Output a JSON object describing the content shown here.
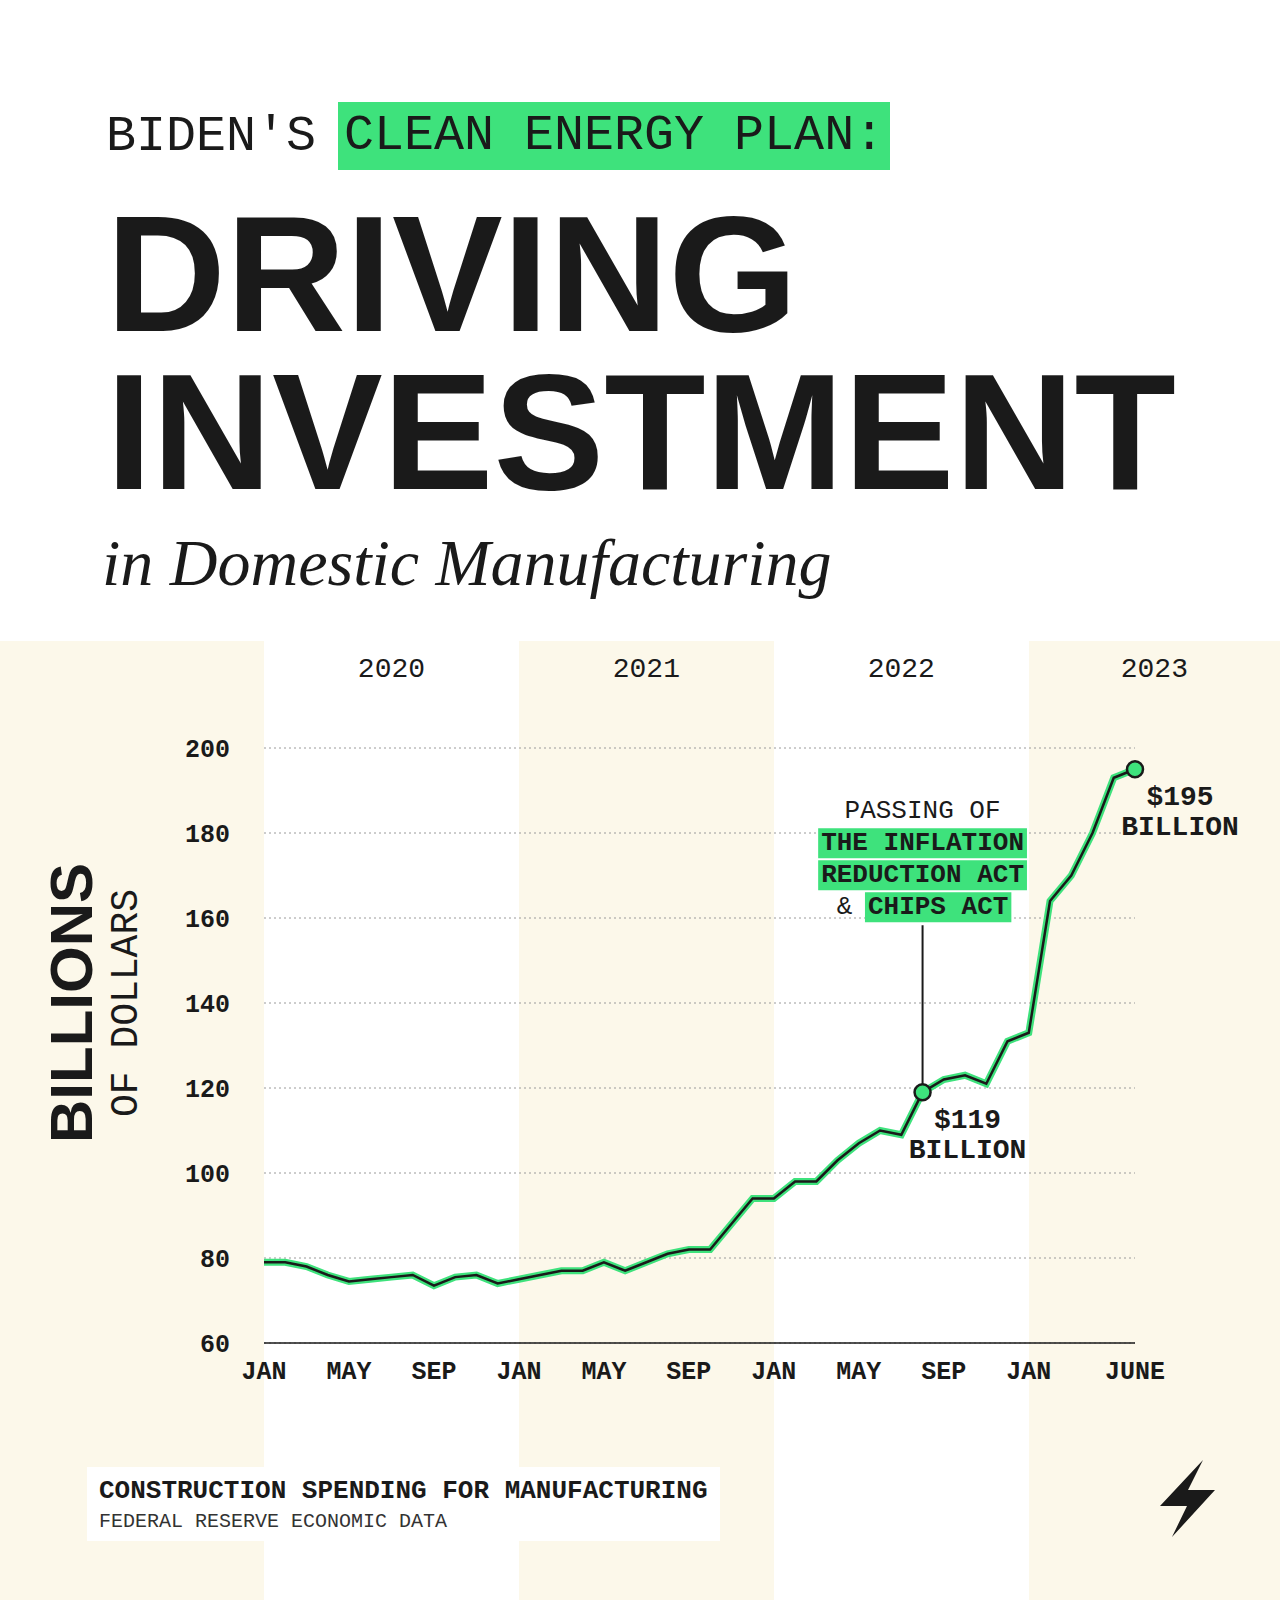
{
  "chart_data": {
    "type": "line",
    "kicker": {
      "plain": "BIDEN'S",
      "marked": "CLEAN ENERGY PLAN:"
    },
    "title": "DRIVING INVESTMENT",
    "subtitle": "in Domestic Manufacturing",
    "ylabel": [
      "BILLIONS",
      "OF DOLLARS"
    ],
    "year_labels": [
      "2020",
      "2021",
      "2022",
      "2023"
    ],
    "categories": [
      "JAN",
      null,
      null,
      null,
      "MAY",
      null,
      null,
      null,
      "SEP",
      null,
      null,
      null,
      "JAN",
      null,
      null,
      null,
      "MAY",
      null,
      null,
      null,
      "SEP",
      null,
      null,
      null,
      "JAN",
      null,
      null,
      null,
      "MAY",
      null,
      null,
      null,
      "SEP",
      null,
      null,
      null,
      "JAN",
      null,
      null,
      null,
      null,
      "JUNE"
    ],
    "values": [
      79,
      79,
      78,
      76,
      74.5,
      75,
      75.5,
      76,
      73.5,
      75.5,
      76,
      74,
      75,
      76,
      77,
      77,
      79,
      77,
      79,
      81,
      82,
      82,
      88,
      94,
      94,
      98,
      98,
      103,
      107,
      110,
      109,
      119,
      122,
      123,
      121,
      131,
      133,
      164,
      170,
      180,
      193,
      195
    ],
    "color": "#3ee27c",
    "ylim": [
      60,
      200
    ],
    "yticks": [
      60,
      80,
      100,
      120,
      140,
      160,
      180,
      200
    ],
    "grid": true,
    "annotations": [
      {
        "category_index": 31,
        "value": 119,
        "label": [
          "$119",
          "BILLION"
        ],
        "note_lines": [
          {
            "plain": "PASSING OF"
          },
          {
            "marked": "THE INFLATION"
          },
          {
            "marked": "REDUCTION ACT"
          },
          {
            "plain": "&",
            "marked": "CHIPS ACT"
          }
        ]
      },
      {
        "category_index": 41,
        "value": 195,
        "label": [
          "$195",
          "BILLION"
        ]
      }
    ],
    "caption": "CONSTRUCTION SPENDING FOR MANUFACTURING",
    "source": "FEDERAL RESERVE ECONOMIC DATA"
  }
}
